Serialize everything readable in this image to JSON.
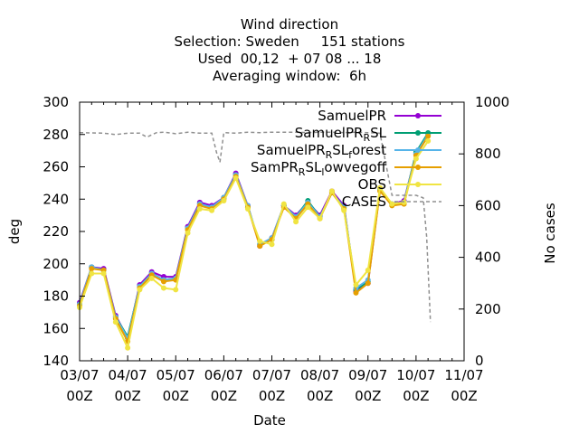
{
  "chart_data": {
    "type": "line",
    "title": {
      "line1": "Wind direction",
      "line2": "Selection: Sweden     151 stations",
      "line3": "Used  00,12  + 07 08 ... 18",
      "line4": "Averaging window:  6h"
    },
    "xlabel": "Date",
    "ylabel": "deg",
    "y2label": "No cases",
    "xlim": [
      0,
      8
    ],
    "ylim": [
      140,
      300
    ],
    "y2lim": [
      0,
      1000
    ],
    "x_ticks": [
      {
        "value": 0,
        "l1": "03/07",
        "l2": "00Z"
      },
      {
        "value": 1,
        "l1": "04/07",
        "l2": "00Z"
      },
      {
        "value": 2,
        "l1": "05/07",
        "l2": "00Z"
      },
      {
        "value": 3,
        "l1": "06/07",
        "l2": "00Z"
      },
      {
        "value": 4,
        "l1": "07/07",
        "l2": "00Z"
      },
      {
        "value": 5,
        "l1": "08/07",
        "l2": "00Z"
      },
      {
        "value": 6,
        "l1": "09/07",
        "l2": "00Z"
      },
      {
        "value": 7,
        "l1": "10/07",
        "l2": "00Z"
      },
      {
        "value": 8,
        "l1": "11/07",
        "l2": "00Z"
      }
    ],
    "y_ticks": [
      140,
      160,
      180,
      200,
      220,
      240,
      260,
      280,
      300
    ],
    "y2_ticks": [
      0,
      200,
      400,
      600,
      800,
      1000
    ],
    "grid": false,
    "legend_position": "top-right",
    "x": [
      0.0,
      0.25,
      0.5,
      0.75,
      1.0,
      1.25,
      1.5,
      1.75,
      2.0,
      2.25,
      2.5,
      2.75,
      3.0,
      3.25,
      3.5,
      3.75,
      4.0,
      4.25,
      4.5,
      4.75,
      5.0,
      5.25,
      5.5,
      5.75,
      6.0,
      6.25,
      6.5,
      6.75,
      7.0,
      7.25
    ],
    "series": [
      {
        "name": "SamuelPR",
        "color": "#9400d3",
        "marker": "circle",
        "values": [
          176,
          198,
          197,
          168,
          154,
          187,
          195,
          192,
          192,
          223,
          238,
          236,
          241,
          256,
          236,
          211,
          216,
          236,
          230,
          238,
          230,
          245,
          236,
          183,
          188,
          246,
          237,
          239,
          268,
          280
        ]
      },
      {
        "name": "SamuelPR_RSL",
        "name_main": "SamuelPR",
        "name_sub": "R",
        "name_tail": "SL",
        "color": "#009e73",
        "marker": "circle",
        "values": [
          175,
          198,
          196,
          167,
          155,
          186,
          194,
          190,
          191,
          222,
          237,
          235,
          241,
          255,
          235,
          212,
          215,
          236,
          229,
          239,
          229,
          244,
          235,
          184,
          189,
          246,
          237,
          238,
          269,
          281
        ]
      },
      {
        "name": "SamuelPR_RSL_forest",
        "name_main": "SamuelPR",
        "name_sub": "R",
        "name_tail": "SL",
        "name_sub2": "f",
        "name_tail2": "orest",
        "color": "#56b4e9",
        "marker": "circle",
        "values": [
          175,
          198,
          196,
          167,
          154,
          186,
          194,
          190,
          191,
          222,
          237,
          235,
          241,
          255,
          236,
          212,
          216,
          236,
          229,
          238,
          229,
          244,
          235,
          185,
          190,
          246,
          237,
          238,
          268,
          280
        ]
      },
      {
        "name": "SamPR_RSL_lowvegoff",
        "name_main": "SamPR",
        "name_sub": "R",
        "name_tail": "SL",
        "name_sub2": "l",
        "name_tail2": "owvegoff",
        "color": "#e69f00",
        "marker": "circle",
        "values": [
          174,
          197,
          196,
          166,
          152,
          185,
          193,
          189,
          190,
          221,
          236,
          234,
          240,
          254,
          235,
          211,
          215,
          235,
          228,
          237,
          228,
          244,
          234,
          182,
          188,
          245,
          236,
          237,
          267,
          279
        ]
      },
      {
        "name": "OBS",
        "color": "#f0e442",
        "marker": "circle",
        "values": [
          173,
          194,
          194,
          164,
          148,
          184,
          191,
          185,
          184,
          219,
          234,
          233,
          239,
          253,
          234,
          214,
          212,
          237,
          226,
          235,
          228,
          245,
          233,
          187,
          196,
          247,
          237,
          238,
          265,
          276
        ]
      },
      {
        "name": "CASES",
        "color": "#909090",
        "dashed": true,
        "axis": "y2",
        "x": [
          0.0,
          0.5,
          0.75,
          1.0,
          1.25,
          1.4,
          1.6,
          1.75,
          2.0,
          2.25,
          2.5,
          2.75,
          2.85,
          2.92,
          3.0,
          3.25,
          3.5,
          3.75,
          4.0,
          4.25,
          4.5,
          4.75,
          5.0,
          5.25,
          5.5,
          5.75,
          6.0,
          6.25,
          6.5,
          7.0,
          7.15,
          7.22,
          7.3
        ],
        "values": [
          882,
          880,
          875,
          880,
          880,
          865,
          882,
          884,
          878,
          884,
          880,
          880,
          805,
          768,
          882,
          880,
          884,
          882,
          884,
          884,
          884,
          882,
          884,
          884,
          882,
          884,
          882,
          880,
          640,
          640,
          630,
          480,
          150
        ]
      }
    ]
  }
}
